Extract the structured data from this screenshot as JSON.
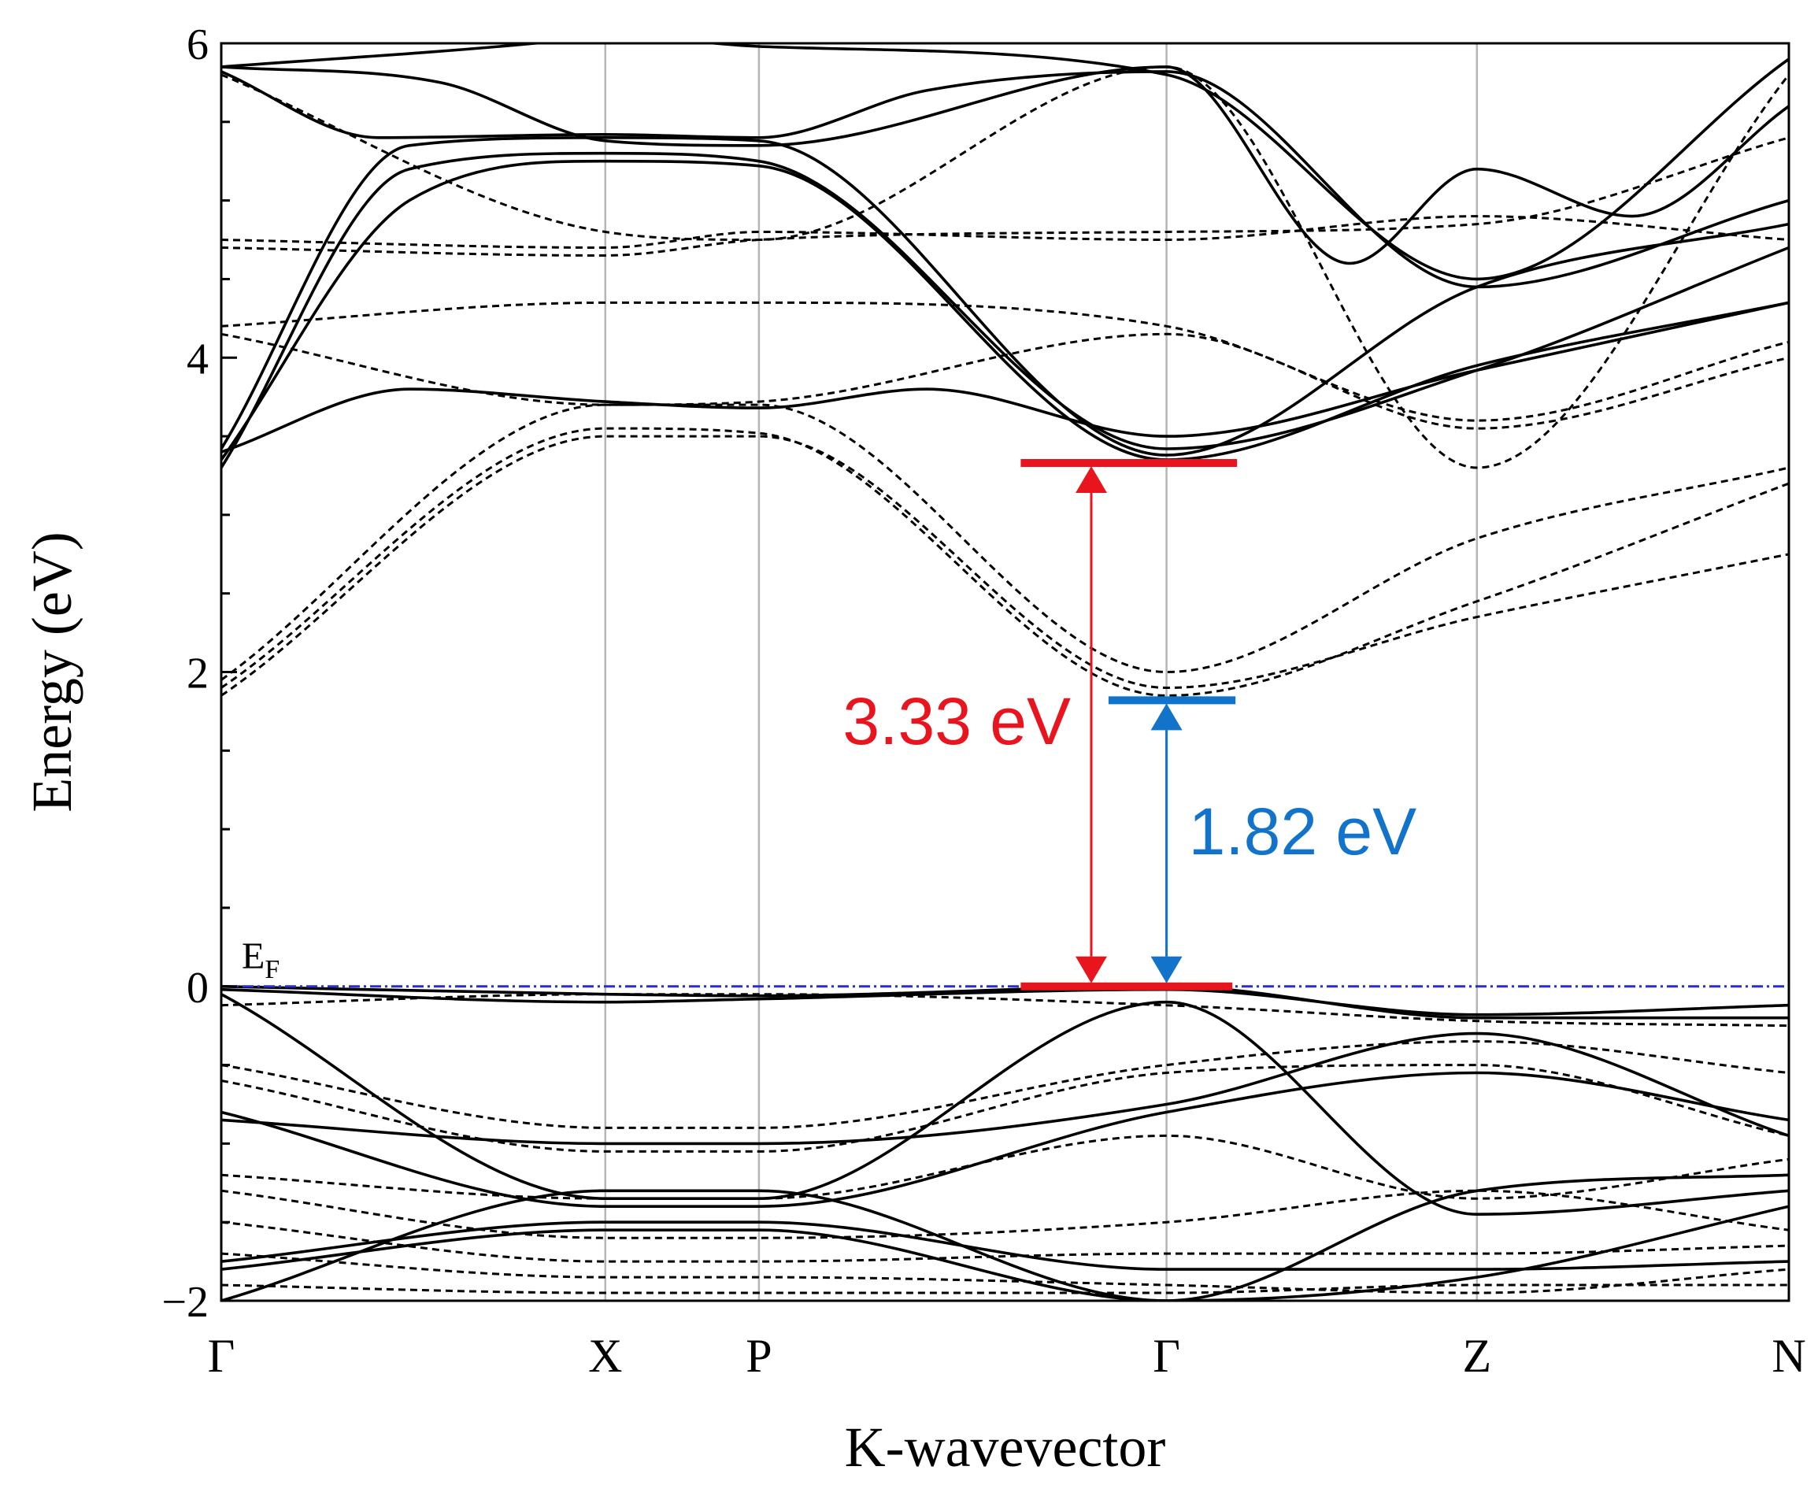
{
  "chart_data": {
    "type": "line",
    "title": "",
    "xlabel": "K-wavevector",
    "ylabel": "Energy (eV)",
    "ylim": [
      -2,
      6
    ],
    "yticks": [
      "−2",
      "0",
      "2",
      "4",
      "6"
    ],
    "kpoints": [
      {
        "label": "Γ",
        "pos": 0.0
      },
      {
        "label": "X",
        "pos": 0.245
      },
      {
        "label": "P",
        "pos": 0.343
      },
      {
        "label": "Γ",
        "pos": 0.603
      },
      {
        "label": "Z",
        "pos": 0.801
      },
      {
        "label": "N",
        "pos": 1.0
      }
    ],
    "fermi_level": {
      "label": "E",
      "subscript": "F",
      "energy": 0,
      "color": "#2a2ad8"
    },
    "gaps": [
      {
        "label": "3.33 eV",
        "value": 3.33,
        "k": 0.555,
        "bar_from": 0.51,
        "bar_to": 0.648,
        "bottom_bar_to": 0.645,
        "color": "#e8141e"
      },
      {
        "label": "1.82 eV",
        "value": 1.82,
        "k": 0.603,
        "bar_from": 0.566,
        "bar_to": 0.647,
        "bottom_bar_to": 0.0,
        "color": "#1173c9"
      }
    ],
    "series": [
      {
        "name": "solid-bands",
        "style": "solid",
        "color": "#000000",
        "bands": [
          {
            "k": [
              0,
              0.12,
              0.245,
              0.343,
              0.603,
              0.801,
              1.0
            ],
            "e": [
              3.35,
              5.0,
              5.25,
              5.22,
              3.35,
              3.95,
              4.35
            ]
          },
          {
            "k": [
              0,
              0.12,
              0.245,
              0.343,
              0.603,
              0.801,
              1.0
            ],
            "e": [
              3.3,
              5.2,
              5.3,
              5.25,
              3.42,
              3.92,
              4.7
            ]
          },
          {
            "k": [
              0,
              0.12,
              0.245,
              0.343,
              0.603,
              0.801,
              1.0
            ],
            "e": [
              3.42,
              5.35,
              5.4,
              5.38,
              3.38,
              4.45,
              4.85
            ]
          },
          {
            "k": [
              0,
              0.1,
              0.245,
              0.343,
              0.45,
              0.603,
              0.801,
              1.0
            ],
            "e": [
              5.82,
              5.4,
              5.42,
              5.4,
              5.7,
              5.82,
              4.45,
              5.0
            ]
          },
          {
            "k": [
              0,
              0.14,
              0.245,
              0.343,
              0.603,
              0.72,
              0.801,
              0.9,
              1.0
            ],
            "e": [
              5.85,
              5.75,
              5.38,
              5.35,
              5.85,
              4.6,
              5.2,
              4.9,
              5.6
            ]
          },
          {
            "k": [
              0,
              0.2,
              0.245,
              0.343,
              0.603,
              0.801,
              1.0
            ],
            "e": [
              5.85,
              6.0,
              6.05,
              5.98,
              5.8,
              4.5,
              5.9
            ]
          },
          {
            "k": [
              0,
              0.12,
              0.245,
              0.343,
              0.45,
              0.603,
              0.801,
              1.0
            ],
            "e": [
              3.4,
              3.8,
              3.72,
              3.68,
              3.8,
              3.5,
              3.92,
              4.35
            ]
          },
          {
            "k": [
              0,
              0.245,
              0.343,
              0.603,
              0.801,
              1.0
            ],
            "e": [
              -0.02,
              -0.1,
              -0.08,
              -0.02,
              -0.18,
              -0.12
            ]
          },
          {
            "k": [
              0,
              0.245,
              0.343,
              0.603,
              0.801,
              1.0
            ],
            "e": [
              0.0,
              -0.05,
              -0.06,
              0.0,
              -0.2,
              -0.2
            ]
          },
          {
            "k": [
              0,
              0.245,
              0.343,
              0.603,
              0.801,
              1.0
            ],
            "e": [
              -0.05,
              -1.35,
              -1.35,
              -0.1,
              -1.45,
              -1.3
            ]
          },
          {
            "k": [
              0,
              0.245,
              0.343,
              0.603,
              0.801,
              1.0
            ],
            "e": [
              -0.8,
              -1.4,
              -1.4,
              -0.8,
              -0.55,
              -0.85
            ]
          },
          {
            "k": [
              0,
              0.245,
              0.343,
              0.603,
              0.801,
              1.0
            ],
            "e": [
              -0.85,
              -1.0,
              -1.0,
              -0.75,
              -0.3,
              -0.95
            ]
          },
          {
            "k": [
              0,
              0.245,
              0.343,
              0.603,
              0.801,
              1.0
            ],
            "e": [
              -1.75,
              -1.5,
              -1.5,
              -1.8,
              -1.8,
              -1.75
            ]
          },
          {
            "k": [
              0,
              0.245,
              0.343,
              0.603,
              0.801,
              1.0
            ],
            "e": [
              -1.8,
              -1.55,
              -1.55,
              -2.0,
              -1.85,
              -1.4
            ]
          },
          {
            "k": [
              0,
              0.245,
              0.343,
              0.603,
              0.801,
              1.0
            ],
            "e": [
              -2.0,
              -1.3,
              -1.3,
              -2.0,
              -1.3,
              -1.2
            ]
          }
        ]
      },
      {
        "name": "dashed-bands",
        "style": "dashed",
        "color": "#000000",
        "bands": [
          {
            "k": [
              0,
              0.245,
              0.343,
              0.603,
              0.801,
              1.0
            ],
            "e": [
              1.85,
              3.5,
              3.5,
              1.9,
              2.35,
              2.75
            ]
          },
          {
            "k": [
              0,
              0.245,
              0.343,
              0.603,
              0.801,
              1.0
            ],
            "e": [
              1.9,
              3.55,
              3.52,
              1.85,
              2.45,
              3.2
            ]
          },
          {
            "k": [
              0,
              0.245,
              0.343,
              0.603,
              0.801,
              1.0
            ],
            "e": [
              1.95,
              3.7,
              3.7,
              2.0,
              2.85,
              3.3
            ]
          },
          {
            "k": [
              0,
              0.245,
              0.343,
              0.603,
              0.801,
              1.0
            ],
            "e": [
              4.2,
              4.35,
              4.35,
              4.2,
              3.6,
              4.1
            ]
          },
          {
            "k": [
              0,
              0.245,
              0.343,
              0.603,
              0.801,
              1.0
            ],
            "e": [
              4.15,
              3.7,
              3.72,
              4.15,
              3.55,
              4.0
            ]
          },
          {
            "k": [
              0,
              0.245,
              0.343,
              0.603,
              0.801,
              1.0
            ],
            "e": [
              4.75,
              4.7,
              4.8,
              4.75,
              4.9,
              4.75
            ]
          },
          {
            "k": [
              0,
              0.245,
              0.343,
              0.603,
              0.801,
              1.0
            ],
            "e": [
              4.7,
              4.65,
              4.75,
              4.8,
              4.85,
              5.4
            ]
          },
          {
            "k": [
              0,
              0.245,
              0.343,
              0.603,
              0.801,
              1.0
            ],
            "e": [
              5.8,
              4.8,
              4.75,
              5.85,
              3.3,
              5.8
            ]
          },
          {
            "k": [
              0,
              0.245,
              0.343,
              0.603,
              0.801,
              1.0
            ],
            "e": [
              -0.12,
              -0.05,
              -0.05,
              -0.12,
              -0.22,
              -0.25
            ]
          },
          {
            "k": [
              0,
              0.245,
              0.343,
              0.603,
              0.801,
              1.0
            ],
            "e": [
              -0.5,
              -0.9,
              -0.9,
              -0.5,
              -0.35,
              -0.55
            ]
          },
          {
            "k": [
              0,
              0.245,
              0.343,
              0.603,
              0.801,
              1.0
            ],
            "e": [
              -0.6,
              -1.05,
              -1.05,
              -0.55,
              -0.5,
              -0.95
            ]
          },
          {
            "k": [
              0,
              0.245,
              0.343,
              0.603,
              0.801,
              1.0
            ],
            "e": [
              -1.2,
              -1.35,
              -1.35,
              -0.95,
              -1.35,
              -1.1
            ]
          },
          {
            "k": [
              0,
              0.245,
              0.343,
              0.603,
              0.801,
              1.0
            ],
            "e": [
              -1.3,
              -1.6,
              -1.6,
              -1.5,
              -1.3,
              -1.55
            ]
          },
          {
            "k": [
              0,
              0.245,
              0.343,
              0.603,
              0.801,
              1.0
            ],
            "e": [
              -1.5,
              -1.75,
              -1.75,
              -1.7,
              -1.7,
              -1.65
            ]
          },
          {
            "k": [
              0,
              0.245,
              0.343,
              0.603,
              0.801,
              1.0
            ],
            "e": [
              -1.7,
              -1.85,
              -1.85,
              -1.9,
              -1.95,
              -1.8
            ]
          },
          {
            "k": [
              0,
              0.245,
              0.343,
              0.603,
              0.801,
              1.0
            ],
            "e": [
              -1.9,
              -1.95,
              -1.95,
              -1.95,
              -1.9,
              -1.9
            ]
          }
        ]
      }
    ]
  }
}
